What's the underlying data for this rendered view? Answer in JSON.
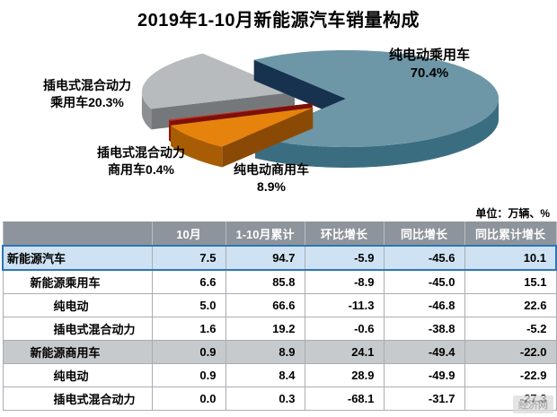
{
  "title": "2019年1-10月新能源汽车销量构成",
  "unit_note": "单位：万辆、%",
  "watermark": "经济网",
  "chart_data": {
    "type": "pie",
    "title": "2019年1-10月新能源汽车销量构成",
    "value_unit": "percent",
    "start_angle": 323,
    "slices": [
      {
        "label": "纯电动乘用车",
        "value": 70.4,
        "color": "#6d97a6",
        "rim": "#3b6d81",
        "dark": "#16324e",
        "explode": 13
      },
      {
        "label": "纯电动商用车",
        "value": 8.9,
        "color": "#e6830d",
        "rim": "#a85c04",
        "dark": "#8a4a05",
        "explode": 30
      },
      {
        "label": "插电式混合动力商用车",
        "value": 0.4,
        "color": "#d42a1a",
        "rim": "#9c150c",
        "dark": "#7c100a",
        "explode": 26
      },
      {
        "label": "插电式混合动力乘用车",
        "value": 20.3,
        "color": "#b8bbbd",
        "rim": "#8d9093",
        "dark": "#75787b",
        "explode": 46
      }
    ],
    "labels": [
      {
        "name": "ev-passenger",
        "line1": "纯电动乘用车",
        "line2": "70.4%"
      },
      {
        "name": "phev-passenger",
        "line1": "插电式混合动力",
        "line2": "乘用车20.3%"
      },
      {
        "name": "phev-commercial",
        "line1": "插电式混合动力",
        "line2": "商用车0.4%"
      },
      {
        "name": "ev-commercial",
        "line1": "纯电动商用车",
        "line2": "8.9%"
      }
    ]
  },
  "table": {
    "headers": [
      "",
      "10月",
      "1-10月累计",
      "环比增长",
      "同比增长",
      "同比累计增长"
    ],
    "rows": [
      {
        "label": "新能源汽车",
        "indent": 0,
        "style": "highlight-blue",
        "values": [
          "7.5",
          "94.7",
          "-5.9",
          "-45.6",
          "10.1"
        ]
      },
      {
        "label": "新能源乘用车",
        "indent": 1,
        "style": "normal",
        "values": [
          "6.6",
          "85.8",
          "-8.9",
          "-45.0",
          "15.1"
        ]
      },
      {
        "label": "纯电动",
        "indent": 2,
        "style": "normal",
        "values": [
          "5.0",
          "66.6",
          "-11.3",
          "-46.8",
          "22.6"
        ]
      },
      {
        "label": "插电式混合动力",
        "indent": 2,
        "style": "normal",
        "values": [
          "1.6",
          "19.2",
          "-0.6",
          "-38.8",
          "-5.2"
        ]
      },
      {
        "label": "新能源商用车",
        "indent": 1,
        "style": "highlight-gray",
        "values": [
          "0.9",
          "8.9",
          "24.1",
          "-49.4",
          "-22.0"
        ]
      },
      {
        "label": "纯电动",
        "indent": 2,
        "style": "normal",
        "values": [
          "0.9",
          "8.4",
          "28.9",
          "-49.9",
          "-22.9"
        ]
      },
      {
        "label": "插电式混合动力",
        "indent": 2,
        "style": "normal",
        "values": [
          "0.0",
          "0.3",
          "-68.1",
          "-31.7",
          "-27.3"
        ]
      }
    ]
  }
}
